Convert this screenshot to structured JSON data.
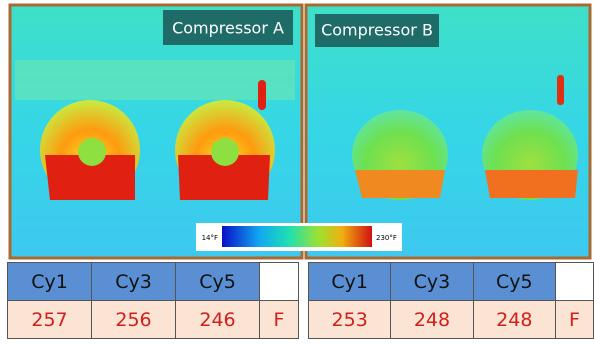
{
  "panels": [
    {
      "label": "Compressor A"
    },
    {
      "label": "Compressor B"
    }
  ],
  "colorbar": {
    "min_label": "14°F",
    "max_label": "230°F"
  },
  "tables": [
    {
      "header": [
        "Cy1",
        "Cy3",
        "Cy5"
      ],
      "row": [
        257,
        256,
        246
      ],
      "unit": "F"
    },
    {
      "header": [
        "Cy1",
        "Cy3",
        "Cy5"
      ],
      "row": [
        253,
        248,
        248
      ],
      "unit": "F"
    }
  ]
}
